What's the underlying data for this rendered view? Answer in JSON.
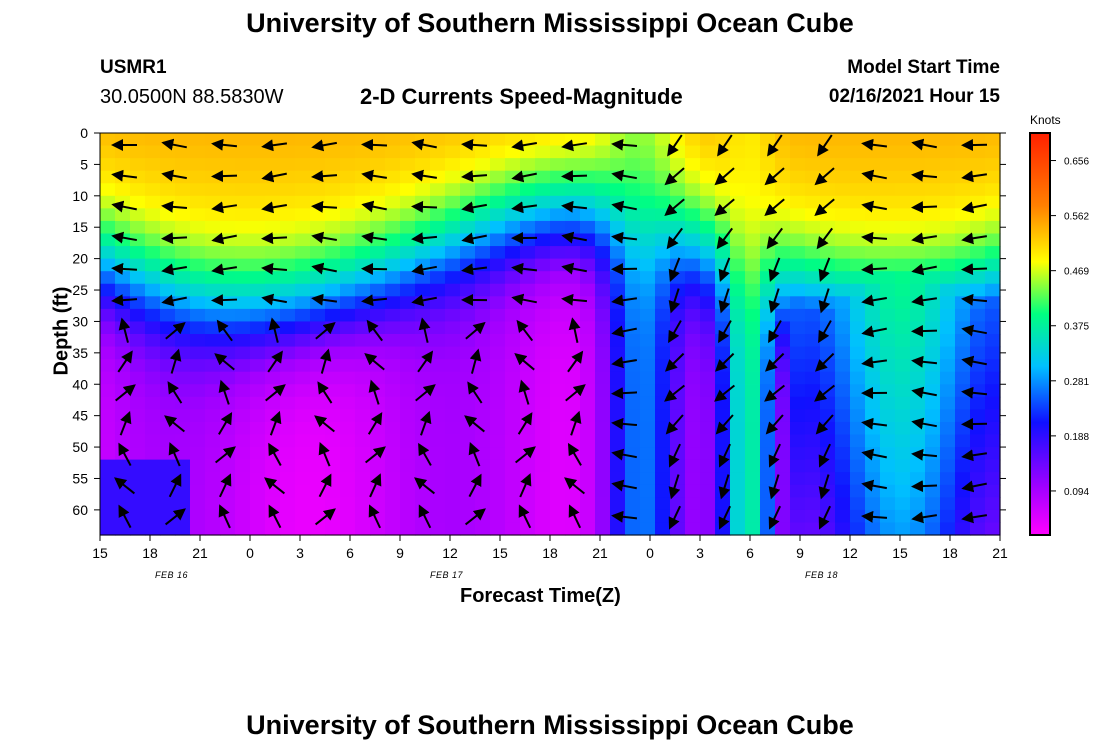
{
  "header": {
    "title": "University of Southern Mississippi Ocean Cube",
    "station": "USMR1",
    "location": "30.0500N 88.5830W",
    "subtitle": "2-D Currents Speed-Magnitude",
    "model_label": "Model Start Time",
    "model_time": "02/16/2021 Hour 15"
  },
  "footer": {
    "title": "University of Southern Mississippi Ocean Cube"
  },
  "chart_data": {
    "type": "heatmap",
    "title": "2-D Currents Speed-Magnitude",
    "xlabel": "Forecast Time(Z)",
    "ylabel": "Depth (ft)",
    "x_ticks": [
      "15",
      "18",
      "21",
      "0",
      "3",
      "6",
      "9",
      "12",
      "15",
      "18",
      "21",
      "0",
      "3",
      "6",
      "9",
      "12",
      "15",
      "18",
      "21"
    ],
    "x_date_labels": [
      "FEB 16",
      "FEB 17",
      "FEB 18"
    ],
    "y_ticks": [
      "0",
      "5",
      "10",
      "15",
      "20",
      "25",
      "30",
      "35",
      "40",
      "45",
      "50",
      "55",
      "60"
    ],
    "ylim": [
      0,
      64
    ],
    "colorbar": {
      "label": "Knots",
      "ticks": [
        "0.656",
        "0.562",
        "0.469",
        "0.375",
        "0.281",
        "0.188",
        "0.094"
      ]
    },
    "colors": {
      "scale": [
        "#ff00ff",
        "#a000ff",
        "#1010ff",
        "#00c0ff",
        "#00ff80",
        "#ffff00",
        "#ff8000",
        "#ff2000"
      ]
    }
  }
}
